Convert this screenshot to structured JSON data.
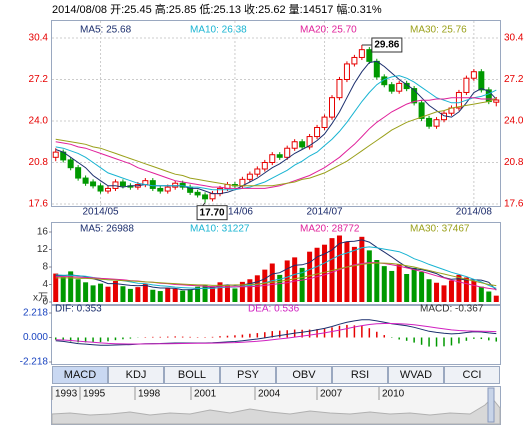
{
  "header": "2014/08/08 开:25.45 高:25.85 低:25.13 收:25.62 量:14517 幅:0.31%",
  "chart_data": [
    {
      "type": "candlestick",
      "categories": [
        null,
        null,
        null,
        null,
        null,
        null,
        "2014/05",
        null,
        null,
        null,
        null,
        null,
        null,
        null,
        null,
        null,
        null,
        null,
        null,
        null,
        null,
        null,
        null,
        null,
        "2014/06",
        null,
        null,
        null,
        null,
        null,
        null,
        null,
        null,
        null,
        null,
        null,
        "2014/07",
        null,
        null,
        null,
        null,
        null,
        null,
        null,
        null,
        null,
        null,
        null,
        null,
        null,
        null,
        null,
        null,
        null,
        null,
        null,
        "2014/08",
        null,
        null,
        null
      ],
      "open": [
        21.2,
        21.6,
        21.0,
        20.4,
        19.6,
        19.3,
        19.0,
        18.6,
        18.8,
        19.3,
        19.0,
        18.9,
        19.1,
        19.4,
        18.8,
        18.6,
        18.9,
        19.2,
        18.9,
        18.5,
        18.3,
        18.0,
        18.4,
        18.8,
        19.1,
        19.0,
        19.5,
        19.9,
        20.3,
        20.8,
        21.4,
        21.2,
        21.9,
        22.4,
        22.0,
        22.8,
        23.5,
        24.3,
        25.8,
        27.2,
        28.4,
        28.9,
        29.5,
        28.6,
        27.4,
        26.8,
        26.3,
        26.9,
        26.5,
        25.4,
        24.2,
        23.6,
        24.1,
        24.6,
        25.0,
        26.2,
        27.3,
        27.8,
        26.4,
        25.45
      ],
      "high": [
        21.9,
        21.8,
        21.2,
        20.6,
        19.8,
        19.5,
        19.2,
        19.0,
        19.5,
        19.5,
        19.2,
        19.3,
        19.6,
        19.6,
        19.0,
        19.1,
        19.4,
        19.4,
        19.1,
        18.7,
        18.5,
        18.6,
        19.0,
        19.3,
        19.3,
        19.7,
        20.1,
        20.5,
        21.0,
        21.6,
        21.6,
        22.1,
        22.6,
        22.6,
        23.0,
        23.7,
        24.5,
        26.0,
        27.4,
        28.6,
        29.1,
        29.86,
        29.7,
        28.8,
        27.6,
        27.0,
        27.1,
        27.1,
        26.7,
        25.6,
        24.4,
        24.3,
        24.8,
        25.2,
        26.4,
        27.5,
        28.0,
        28.0,
        26.6,
        25.85
      ],
      "low": [
        20.9,
        20.8,
        20.2,
        19.4,
        19.0,
        18.8,
        18.4,
        18.4,
        18.6,
        18.8,
        18.7,
        18.7,
        18.9,
        18.6,
        18.4,
        18.4,
        18.7,
        18.7,
        18.3,
        18.1,
        17.7,
        17.8,
        18.2,
        18.6,
        18.8,
        18.8,
        19.3,
        19.7,
        20.1,
        20.6,
        21.0,
        21.0,
        21.7,
        21.8,
        21.8,
        22.6,
        23.3,
        24.1,
        25.6,
        27.0,
        28.2,
        28.7,
        28.4,
        27.2,
        26.6,
        26.1,
        26.1,
        26.3,
        25.2,
        24.0,
        23.4,
        23.4,
        23.9,
        24.4,
        24.8,
        26.0,
        27.1,
        26.2,
        25.3,
        25.13
      ],
      "close": [
        21.6,
        21.0,
        20.4,
        19.6,
        19.2,
        19.0,
        18.6,
        18.8,
        19.3,
        19.0,
        18.9,
        19.1,
        19.4,
        18.8,
        18.6,
        18.9,
        19.2,
        18.9,
        18.5,
        18.3,
        18.0,
        18.4,
        18.8,
        19.1,
        19.0,
        19.5,
        19.9,
        20.3,
        20.8,
        21.4,
        21.2,
        21.9,
        22.4,
        22.0,
        22.8,
        23.5,
        24.3,
        25.8,
        27.2,
        28.4,
        28.9,
        29.5,
        28.6,
        27.4,
        26.8,
        26.3,
        26.9,
        26.5,
        25.4,
        24.2,
        23.6,
        24.1,
        24.6,
        25.0,
        26.2,
        27.3,
        27.8,
        26.4,
        25.5,
        25.62
      ],
      "colors": {
        "up": "#e60000",
        "down": "#009900"
      },
      "series": [
        {
          "name": "MA5: 25.68",
          "color": "#1c2f6e",
          "values": [
            21.8,
            21.6,
            21.2,
            20.8,
            20.4,
            19.8,
            19.4,
            19.0,
            19.0,
            18.9,
            19.0,
            19.0,
            19.1,
            19.0,
            19.0,
            19.0,
            19.0,
            19.0,
            18.8,
            18.8,
            18.6,
            18.4,
            18.4,
            18.5,
            18.7,
            19.0,
            19.3,
            19.6,
            20.0,
            20.4,
            20.7,
            21.1,
            21.5,
            21.8,
            22.1,
            22.5,
            23.0,
            23.8,
            24.7,
            25.8,
            26.9,
            27.8,
            28.5,
            28.6,
            28.2,
            27.7,
            27.2,
            26.8,
            26.4,
            25.8,
            25.2,
            24.8,
            24.4,
            24.3,
            24.7,
            25.4,
            26.2,
            26.5,
            26.3,
            25.68
          ]
        },
        {
          "name": "MA10: 26.38",
          "color": "#19b4d2",
          "values": [
            22.0,
            21.9,
            21.7,
            21.5,
            21.2,
            20.8,
            20.4,
            20.0,
            19.8,
            19.6,
            19.4,
            19.2,
            19.1,
            19.0,
            19.0,
            19.0,
            19.0,
            19.0,
            18.9,
            18.9,
            18.8,
            18.7,
            18.7,
            18.7,
            18.7,
            18.8,
            18.9,
            19.1,
            19.3,
            19.6,
            19.9,
            20.2,
            20.6,
            20.9,
            21.3,
            21.6,
            22.1,
            22.6,
            23.2,
            23.9,
            24.7,
            25.5,
            26.2,
            26.8,
            27.2,
            27.4,
            27.5,
            27.3,
            27.0,
            26.6,
            26.2,
            25.8,
            25.6,
            25.4,
            25.4,
            25.6,
            25.8,
            25.9,
            26.1,
            26.38
          ]
        },
        {
          "name": "MA20: 25.70",
          "color": "#e0209a",
          "values": [
            22.4,
            22.3,
            22.2,
            22.0,
            21.9,
            21.7,
            21.5,
            21.3,
            21.1,
            20.9,
            20.7,
            20.4,
            20.2,
            20.0,
            19.8,
            19.6,
            19.4,
            19.3,
            19.2,
            19.1,
            19.0,
            18.9,
            18.9,
            18.8,
            18.8,
            18.8,
            18.8,
            18.8,
            18.8,
            18.9,
            19.0,
            19.2,
            19.4,
            19.6,
            19.8,
            20.1,
            20.4,
            20.8,
            21.2,
            21.7,
            22.2,
            22.8,
            23.4,
            23.9,
            24.3,
            24.7,
            25.0,
            25.3,
            25.5,
            25.6,
            25.6,
            25.7,
            25.7,
            25.8,
            25.8,
            25.8,
            25.8,
            25.7,
            25.7,
            25.7
          ]
        },
        {
          "name": "MA30: 25.76",
          "color": "#9aa01a",
          "values": [
            22.6,
            22.5,
            22.4,
            22.3,
            22.2,
            22.0,
            21.9,
            21.7,
            21.5,
            21.3,
            21.1,
            20.9,
            20.7,
            20.5,
            20.3,
            20.1,
            19.9,
            19.8,
            19.6,
            19.5,
            19.4,
            19.3,
            19.2,
            19.1,
            19.0,
            19.0,
            19.0,
            19.0,
            19.0,
            19.0,
            19.1,
            19.2,
            19.3,
            19.5,
            19.6,
            19.8,
            20.0,
            20.3,
            20.6,
            20.9,
            21.3,
            21.7,
            22.1,
            22.5,
            22.9,
            23.3,
            23.6,
            23.9,
            24.1,
            24.3,
            24.5,
            24.7,
            24.8,
            25.0,
            25.1,
            25.2,
            25.3,
            25.4,
            25.5,
            25.76
          ]
        }
      ],
      "ylim": [
        17.6,
        30.4
      ],
      "yticks": [
        17.6,
        20.8,
        {
          "value": 24,
          "label": "24.0"
        },
        27.2,
        30.4
      ],
      "grid": true,
      "annotations": [
        {
          "text": "29.86",
          "value": 29.86,
          "field": "high"
        },
        {
          "text": "17.70",
          "value": 17.7,
          "field": "low"
        }
      ]
    },
    {
      "type": "bar",
      "unit_label": "x万",
      "values": [
        6.5,
        5.8,
        7.0,
        5.2,
        4.5,
        3.8,
        4.2,
        3.5,
        4.8,
        3.6,
        3.0,
        3.4,
        4.1,
        2.8,
        2.5,
        3.2,
        3.0,
        2.6,
        2.9,
        3.5,
        4.0,
        3.6,
        4.5,
        3.8,
        3.1,
        4.6,
        5.2,
        6.1,
        7.4,
        8.8,
        6.2,
        9.5,
        10.2,
        7.8,
        11.5,
        12.4,
        13.1,
        14.6,
        15.2,
        13.8,
        12.6,
        14.9,
        11.8,
        9.6,
        8.2,
        7.1,
        8.6,
        6.4,
        7.8,
        6.9,
        5.2,
        4.4,
        3.8,
        4.9,
        6.2,
        5.6,
        4.8,
        3.5,
        2.4,
        1.45
      ],
      "series": [
        {
          "name": "MA5: 26988",
          "color": "#1c2f6e",
          "values": [
            6.0,
            6.0,
            6.2,
            6.0,
            5.8,
            5.3,
            4.9,
            4.2,
            4.2,
            4.0,
            3.8,
            3.7,
            3.8,
            3.4,
            3.2,
            3.2,
            3.1,
            2.8,
            2.8,
            3.0,
            3.2,
            3.3,
            3.7,
            3.9,
            3.8,
            3.9,
            4.2,
            4.6,
            5.3,
            6.4,
            6.7,
            7.6,
            8.4,
            8.5,
            9.0,
            10.3,
            11.0,
            11.9,
            13.4,
            13.8,
            13.9,
            14.2,
            13.7,
            12.5,
            11.4,
            10.3,
            9.1,
            8.0,
            7.6,
            7.4,
            7.0,
            6.5,
            5.6,
            5.2,
            5.3,
            5.0,
            5.1,
            5.0,
            4.5,
            2.7
          ]
        },
        {
          "name": "MA10: 31227",
          "color": "#19b4d2",
          "values": [
            6.2,
            6.1,
            6.1,
            6.0,
            5.9,
            5.6,
            5.4,
            5.1,
            5.0,
            4.9,
            4.6,
            4.3,
            4.2,
            3.9,
            3.7,
            3.6,
            3.4,
            3.3,
            3.2,
            3.1,
            3.1,
            3.1,
            3.3,
            3.4,
            3.4,
            3.6,
            3.8,
            4.0,
            4.4,
            4.9,
            5.2,
            5.7,
            6.3,
            6.7,
            7.4,
            8.1,
            8.9,
            9.8,
            10.7,
            11.2,
            11.8,
            12.4,
            12.6,
            12.4,
            12.1,
            11.8,
            11.5,
            10.8,
            9.9,
            9.3,
            8.6,
            8.0,
            7.4,
            6.8,
            6.3,
            5.8,
            5.2,
            4.6,
            3.8,
            3.12
          ]
        },
        {
          "name": "MA20: 28772",
          "color": "#e0209a",
          "values": [
            5.8,
            5.8,
            5.8,
            5.7,
            5.6,
            5.5,
            5.4,
            5.3,
            5.2,
            5.1,
            4.9,
            4.8,
            4.6,
            4.5,
            4.3,
            4.2,
            4.0,
            3.9,
            3.8,
            3.7,
            3.6,
            3.5,
            3.5,
            3.5,
            3.5,
            3.5,
            3.5,
            3.6,
            3.8,
            4.0,
            4.2,
            4.4,
            4.8,
            5.0,
            5.3,
            5.8,
            6.2,
            6.8,
            7.4,
            8.0,
            8.5,
            8.8,
            9.0,
            9.0,
            8.8,
            8.5,
            8.2,
            7.8,
            7.4,
            7.0,
            6.5,
            6.0,
            5.5,
            5.0,
            4.6,
            4.2,
            3.8,
            3.4,
            3.1,
            2.88
          ]
        },
        {
          "name": "MA30: 37467",
          "color": "#9aa01a",
          "values": [
            5.5,
            5.5,
            5.5,
            5.4,
            5.4,
            5.3,
            5.2,
            5.1,
            5.0,
            4.9,
            4.8,
            4.7,
            4.6,
            4.5,
            4.4,
            4.3,
            4.2,
            4.1,
            4.0,
            3.9,
            3.9,
            3.8,
            3.8,
            3.8,
            3.9,
            3.9,
            4.0,
            4.1,
            4.3,
            4.5,
            4.7,
            5.0,
            5.3,
            5.6,
            6.0,
            6.4,
            6.8,
            7.2,
            7.6,
            8.0,
            8.3,
            8.6,
            8.8,
            8.9,
            8.9,
            8.8,
            8.6,
            8.3,
            8.0,
            7.6,
            7.2,
            6.8,
            6.4,
            6.0,
            5.6,
            5.2,
            4.8,
            4.4,
            4.0,
            3.75
          ]
        }
      ],
      "ylim": [
        0,
        16
      ],
      "yticks": [
        0,
        4,
        8,
        12,
        16
      ]
    },
    {
      "type": "macd",
      "bars": {
        "name": "MACD: -0.367",
        "values": [
          -0.2,
          -0.24,
          -0.36,
          -0.44,
          -0.44,
          -0.44,
          -0.42,
          -0.34,
          -0.24,
          -0.16,
          -0.1,
          -0.02,
          0.04,
          0.06,
          0.06,
          0.08,
          0.1,
          0.08,
          0.06,
          0.04,
          0.04,
          0.06,
          0.12,
          0.16,
          0.2,
          0.26,
          0.34,
          0.4,
          0.48,
          0.58,
          0.62,
          0.66,
          0.72,
          0.7,
          0.72,
          0.76,
          0.8,
          0.92,
          1.06,
          1.14,
          1.1,
          1.04,
          0.84,
          0.52,
          0.22,
          -0.04,
          -0.18,
          -0.3,
          -0.46,
          -0.66,
          -0.82,
          -0.82,
          -0.8,
          -0.72,
          -0.54,
          -0.3,
          -0.12,
          -0.14,
          -0.26,
          -0.367
        ]
      },
      "series": [
        {
          "name": "DIF: 0.353",
          "color": "#1c2f6e",
          "values": [
            -0.3,
            -0.35,
            -0.45,
            -0.55,
            -0.6,
            -0.65,
            -0.7,
            -0.7,
            -0.68,
            -0.66,
            -0.64,
            -0.6,
            -0.56,
            -0.55,
            -0.54,
            -0.52,
            -0.5,
            -0.5,
            -0.5,
            -0.5,
            -0.5,
            -0.48,
            -0.44,
            -0.4,
            -0.36,
            -0.3,
            -0.22,
            -0.14,
            -0.04,
            0.08,
            0.18,
            0.28,
            0.4,
            0.48,
            0.58,
            0.7,
            0.82,
            1.0,
            1.2,
            1.38,
            1.5,
            1.6,
            1.6,
            1.5,
            1.38,
            1.25,
            1.16,
            1.06,
            0.92,
            0.74,
            0.56,
            0.46,
            0.38,
            0.33,
            0.36,
            0.45,
            0.52,
            0.5,
            0.42,
            0.353
          ]
        },
        {
          "name": "DEA: 0.536",
          "color": "#d020c0",
          "values": [
            -0.2,
            -0.23,
            -0.27,
            -0.33,
            -0.38,
            -0.43,
            -0.49,
            -0.53,
            -0.56,
            -0.58,
            -0.59,
            -0.59,
            -0.58,
            -0.58,
            -0.57,
            -0.56,
            -0.55,
            -0.54,
            -0.53,
            -0.52,
            -0.52,
            -0.51,
            -0.5,
            -0.48,
            -0.46,
            -0.43,
            -0.39,
            -0.34,
            -0.28,
            -0.21,
            -0.13,
            -0.05,
            0.04,
            0.13,
            0.22,
            0.32,
            0.42,
            0.54,
            0.67,
            0.81,
            0.95,
            1.08,
            1.18,
            1.24,
            1.27,
            1.27,
            1.25,
            1.21,
            1.15,
            1.07,
            0.97,
            0.87,
            0.78,
            0.69,
            0.63,
            0.6,
            0.58,
            0.57,
            0.55,
            0.536
          ]
        }
      ],
      "ylim": [
        -2.218,
        2.218
      ],
      "yticks": [
        -2.218,
        {
          "value": 0,
          "label": "0.000"
        },
        2.218
      ]
    }
  ],
  "tabs": [
    "MACD",
    "KDJ",
    "BOLL",
    "PSY",
    "OBV",
    "RSI",
    "WVAD",
    "CCI"
  ],
  "timeline": {
    "years": [
      "1993",
      "1995",
      "1998",
      "2001",
      "2004",
      "2007",
      "2010"
    ]
  }
}
